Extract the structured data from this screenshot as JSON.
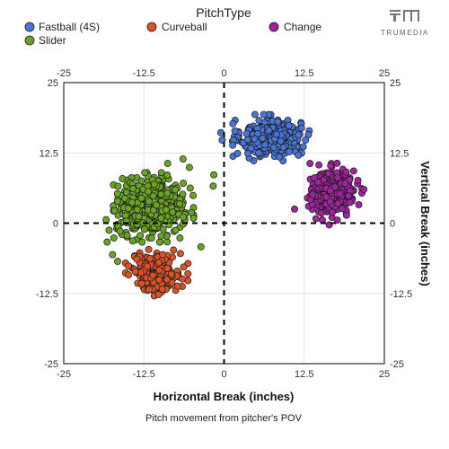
{
  "chart_data": {
    "type": "scatter",
    "legend": {
      "title": "PitchType",
      "position": "top"
    },
    "xlabel": "Horizontal Break (inches)",
    "ylabel": "Vertical Break (inches)",
    "caption": "Pitch movement from pitcher's POV",
    "xlim": [
      -25,
      25
    ],
    "ylim": [
      -25,
      25
    ],
    "xticks": [
      "-25",
      "-12.5",
      "0",
      "12.5",
      "25"
    ],
    "yticks": [
      "25",
      "12.5",
      "0",
      "-12.5",
      "-25"
    ],
    "reference_lines": {
      "x": 0,
      "y": 0,
      "style": "dashed"
    },
    "grid": true,
    "series": [
      {
        "name": "Fastball (4S)",
        "color": "#4a74d4",
        "center": {
          "x": 7.3,
          "y": 15.2
        },
        "spread": {
          "x": 3.2,
          "y": 2.2
        },
        "count": 420,
        "points": [
          [
            -0.3,
            14.8
          ],
          [
            -0.5,
            16.1
          ],
          [
            1.4,
            11.9
          ],
          [
            2.1,
            12.4
          ],
          [
            12.7,
            14.8
          ],
          [
            11.6,
            12.1
          ]
        ]
      },
      {
        "name": "Curveball",
        "color": "#d9532b",
        "center": {
          "x": -10.5,
          "y": -8.8
        },
        "spread": {
          "x": 2.6,
          "y": 2.2
        },
        "count": 230,
        "points": [
          [
            -14.9,
            -9.2
          ],
          [
            -13.6,
            -6.4
          ],
          [
            -6.3,
            -7.8
          ],
          [
            -10.2,
            -12.7
          ],
          [
            -6.8,
            -5.4
          ]
        ]
      },
      {
        "name": "Change",
        "color": "#9e259c",
        "center": {
          "x": 17.0,
          "y": 5.6
        },
        "spread": {
          "x": 2.4,
          "y": 2.7
        },
        "count": 330,
        "points": [
          [
            11.0,
            2.5
          ],
          [
            13.4,
            10.6
          ],
          [
            21.8,
            6.0
          ],
          [
            19.1,
            1.4
          ],
          [
            16.4,
            -0.3
          ]
        ]
      },
      {
        "name": "Slider",
        "color": "#6aa326",
        "center": {
          "x": -11.5,
          "y": 2.8
        },
        "spread": {
          "x": 3.6,
          "y": 3.3
        },
        "count": 520,
        "points": [
          [
            -18.4,
            0.6
          ],
          [
            -17.4,
            -5.6
          ],
          [
            -16.6,
            -6.8
          ],
          [
            -1.6,
            8.6
          ],
          [
            -1.7,
            6.6
          ],
          [
            -3.6,
            -4.2
          ],
          [
            -5.4,
            9.9
          ],
          [
            -8.8,
            10.6
          ],
          [
            -6.4,
            11.4
          ]
        ]
      }
    ]
  },
  "colors": {
    "grid": "#e3e3e3",
    "axis": "#000000",
    "point_stroke": "#1a1a1a"
  },
  "logo": {
    "text": "TRUMEDIA",
    "icon": "trumedia-logo-icon"
  }
}
